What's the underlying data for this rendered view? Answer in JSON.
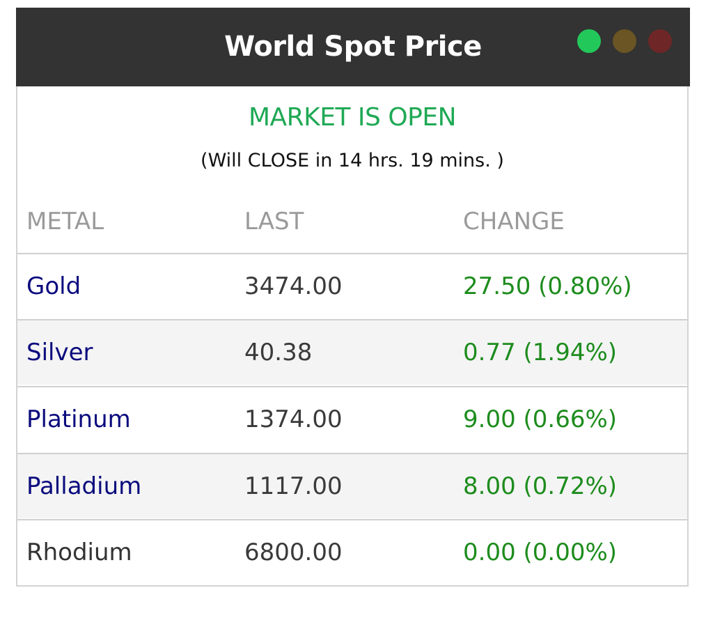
{
  "header": {
    "title": "World Spot Price",
    "lights": [
      {
        "name": "green",
        "color": "#22c95a"
      },
      {
        "name": "amber",
        "color": "#6b5524"
      },
      {
        "name": "red",
        "color": "#6e2626"
      }
    ]
  },
  "market": {
    "status": "MARKET IS OPEN",
    "countdown": "(Will CLOSE in 14 hrs. 19 mins. )"
  },
  "table": {
    "columns": [
      "METAL",
      "LAST",
      "CHANGE"
    ],
    "rows": [
      {
        "metal": "Gold",
        "last": "3474.00",
        "change": "27.50 (0.80%)",
        "link": true
      },
      {
        "metal": "Silver",
        "last": "40.38",
        "change": "0.77 (1.94%)",
        "link": true
      },
      {
        "metal": "Platinum",
        "last": "1374.00",
        "change": "9.00 (0.66%)",
        "link": true
      },
      {
        "metal": "Palladium",
        "last": "1117.00",
        "change": "8.00 (0.72%)",
        "link": true
      },
      {
        "metal": "Rhodium",
        "last": "6800.00",
        "change": "0.00 (0.00%)",
        "link": false
      }
    ]
  },
  "colors": {
    "header_bg": "#333333",
    "status_green": "#1fa955",
    "link_navy": "#0b0b7e",
    "change_green": "#1d8c1d"
  }
}
